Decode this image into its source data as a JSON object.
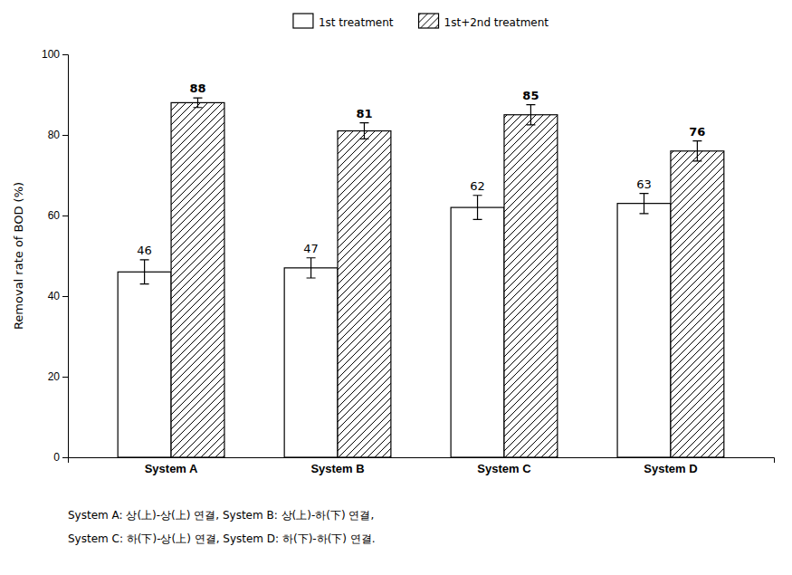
{
  "chart_data": {
    "type": "bar",
    "categories": [
      "System A",
      "System B",
      "System C",
      "System D"
    ],
    "series": [
      {
        "name": "1st treatment",
        "color": "#ffffff",
        "values": [
          46,
          47,
          62,
          63
        ],
        "errors": [
          3.0,
          2.5,
          3.0,
          2.5
        ]
      },
      {
        "name": "1st+2nd treatment",
        "color": "#ffffff",
        "values": [
          88,
          81,
          85,
          76
        ],
        "errors": [
          1.2,
          2.0,
          2.5,
          2.5
        ]
      }
    ],
    "ylabel": "Removal rate of BOD (%)",
    "ylim": [
      0,
      100
    ],
    "yticks": [
      0,
      20,
      40,
      60,
      80,
      100
    ],
    "grid": false,
    "legend": "top",
    "data_labels": true,
    "annotations": [
      "System A: 상(上)-상(上) 연결, System B: 상(上)-하(下) 연결,",
      "System C: 하(下)-상(上) 연결, System D: 하(下)-하(下) 연결."
    ]
  }
}
